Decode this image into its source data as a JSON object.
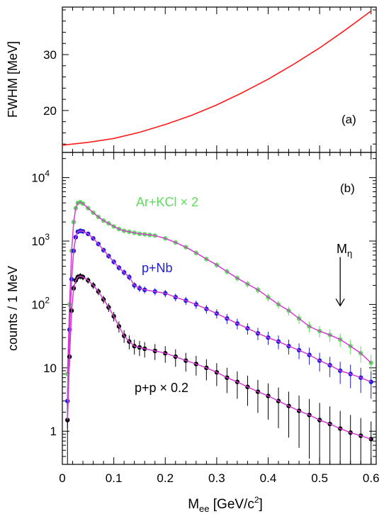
{
  "colors": {
    "axis": "#000000",
    "fwhm": "#ff1a1a",
    "arkcl": "#5ddc5d",
    "pnb": "#1c1cdc",
    "pp": "#000000",
    "fit": "#d23cd2"
  },
  "chart_data": [
    {
      "panel_label": "(a)",
      "type": "line",
      "ylabel": "FWHM [MeV]",
      "ylim": [
        12.5,
        38.5
      ],
      "yticks": [
        {
          "value": 20,
          "label": "20"
        },
        {
          "value": 30,
          "label": "30"
        }
      ],
      "xlim": [
        0,
        0.61
      ],
      "series": [
        {
          "x": [
            0.0,
            0.05,
            0.1,
            0.15,
            0.2,
            0.25,
            0.3,
            0.35,
            0.4,
            0.45,
            0.5,
            0.55,
            0.6
          ],
          "y": [
            13.8,
            14.3,
            15.0,
            16.1,
            17.5,
            19.1,
            21.0,
            23.2,
            25.6,
            28.3,
            31.2,
            34.4,
            37.8
          ]
        }
      ]
    },
    {
      "panel_label": "(b)",
      "type": "scatter",
      "ylabel": "counts / 1 MeV",
      "xlabel_main": "M",
      "xlabel_sub": "ee",
      "xlabel_unit": " [GeV/c",
      "xlabel_sup": "2",
      "xlabel_end": "]",
      "yscale": "log",
      "ylim": [
        0.3,
        25000
      ],
      "yticks": [
        {
          "value": 1,
          "label": "1"
        },
        {
          "value": 10,
          "label": "10"
        },
        {
          "value": 100,
          "label_base": "10",
          "label_exp": "2"
        },
        {
          "value": 1000,
          "label_base": "10",
          "label_exp": "3"
        },
        {
          "value": 10000,
          "label_base": "10",
          "label_exp": "4"
        }
      ],
      "xlim": [
        0,
        0.61
      ],
      "xticks": [
        {
          "value": 0,
          "label": "0"
        },
        {
          "value": 0.1,
          "label": "0.1"
        },
        {
          "value": 0.2,
          "label": "0.2"
        },
        {
          "value": 0.3,
          "label": "0.3"
        },
        {
          "value": 0.4,
          "label": "0.4"
        },
        {
          "value": 0.5,
          "label": "0.5"
        },
        {
          "value": 0.6,
          "label": "0.6"
        }
      ],
      "annotation": {
        "text": "M",
        "sub": "η",
        "x": 0.54,
        "y_from": 560,
        "y_to": 95
      },
      "series": [
        {
          "name": "Ar+KCl × 2",
          "x": [
            0.01,
            0.014,
            0.018,
            0.022,
            0.026,
            0.03,
            0.035,
            0.04,
            0.05,
            0.06,
            0.07,
            0.08,
            0.09,
            0.1,
            0.11,
            0.12,
            0.13,
            0.14,
            0.15,
            0.16,
            0.17,
            0.18,
            0.2,
            0.22,
            0.24,
            0.26,
            0.28,
            0.3,
            0.32,
            0.34,
            0.36,
            0.38,
            0.4,
            0.42,
            0.44,
            0.46,
            0.48,
            0.5,
            0.52,
            0.54,
            0.56,
            0.58,
            0.6
          ],
          "y": [
            8,
            100,
            700,
            2000,
            3300,
            4000,
            4100,
            3900,
            3300,
            2800,
            2400,
            2100,
            1900,
            1700,
            1550,
            1450,
            1400,
            1350,
            1300,
            1280,
            1250,
            1220,
            1100,
            950,
            800,
            650,
            520,
            420,
            330,
            260,
            210,
            170,
            130,
            100,
            80,
            60,
            45,
            38,
            33,
            28,
            22,
            17,
            12
          ]
        },
        {
          "name": "p+Nb",
          "x": [
            0.01,
            0.014,
            0.018,
            0.022,
            0.026,
            0.03,
            0.035,
            0.04,
            0.05,
            0.06,
            0.07,
            0.08,
            0.09,
            0.1,
            0.11,
            0.12,
            0.13,
            0.14,
            0.15,
            0.16,
            0.18,
            0.2,
            0.22,
            0.24,
            0.26,
            0.28,
            0.3,
            0.32,
            0.34,
            0.36,
            0.38,
            0.4,
            0.42,
            0.44,
            0.46,
            0.48,
            0.5,
            0.52,
            0.54,
            0.56,
            0.58,
            0.6
          ],
          "y": [
            3,
            40,
            250,
            700,
            1150,
            1400,
            1450,
            1420,
            1300,
            1100,
            900,
            720,
            580,
            470,
            380,
            320,
            270,
            200,
            180,
            170,
            160,
            150,
            130,
            115,
            100,
            85,
            72,
            60,
            50,
            42,
            35,
            30,
            26,
            22,
            19,
            16,
            13,
            11,
            9,
            8,
            7,
            6
          ]
        },
        {
          "name": "p+p × 0.2",
          "x": [
            0.01,
            0.014,
            0.018,
            0.022,
            0.026,
            0.03,
            0.035,
            0.04,
            0.05,
            0.06,
            0.07,
            0.08,
            0.09,
            0.1,
            0.11,
            0.12,
            0.13,
            0.14,
            0.15,
            0.16,
            0.18,
            0.2,
            0.22,
            0.24,
            0.26,
            0.28,
            0.3,
            0.32,
            0.34,
            0.36,
            0.38,
            0.4,
            0.42,
            0.44,
            0.46,
            0.48,
            0.5,
            0.52,
            0.54,
            0.56,
            0.58,
            0.6
          ],
          "y": [
            1.5,
            15,
            80,
            180,
            240,
            270,
            280,
            270,
            240,
            200,
            160,
            120,
            90,
            65,
            45,
            32,
            26,
            22,
            21,
            20,
            18.5,
            17,
            15,
            13,
            11.5,
            10,
            8.5,
            7,
            6,
            5,
            4.2,
            3.6,
            3.0,
            2.5,
            2.1,
            1.8,
            1.5,
            1.3,
            1.1,
            0.95,
            0.85,
            0.75
          ]
        }
      ]
    }
  ]
}
